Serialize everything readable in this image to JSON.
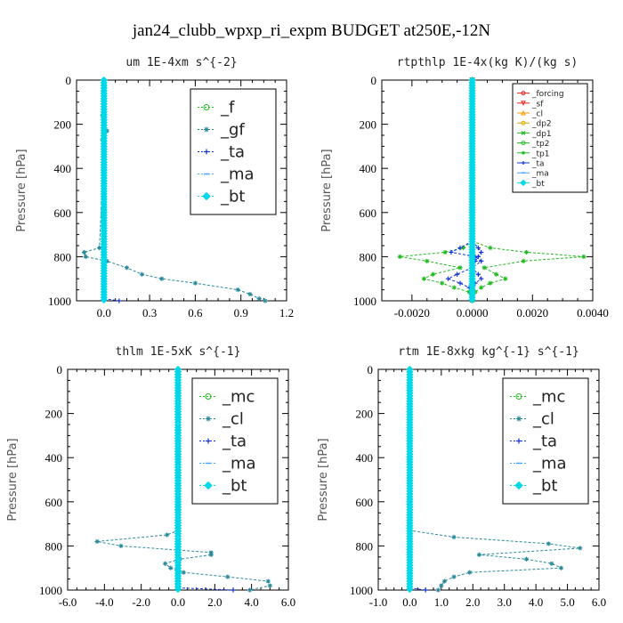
{
  "title": "jan24_clubb_wpxp_ri_expm  BUDGET at250E,-12N",
  "colors": {
    "green": "#22bb22",
    "teal": "#2a8a9a",
    "blue": "#1133dd",
    "lightblue": "#4aa3ff",
    "cyan": "#00d8e8",
    "red": "#ee2222",
    "orange": "#ff9900",
    "gold": "#ddaa00"
  },
  "chart_data": [
    {
      "type": "line",
      "title": "um  1E-4xm s^{-2}",
      "ylabel": "Pressure [hPa]",
      "xlim": [
        -0.18,
        1.2
      ],
      "ylim": [
        1000,
        0
      ],
      "xticks": [
        "0.0",
        "0.3",
        "0.6",
        "0.9",
        "1.2"
      ],
      "xtick_values": [
        0,
        0.3,
        0.6,
        0.9,
        1.2
      ],
      "yticks": [
        "0",
        "200",
        "400",
        "600",
        "800",
        "1000"
      ],
      "ytick_values": [
        0,
        200,
        400,
        600,
        800,
        1000
      ],
      "legend_position": "top-right",
      "legend_size": "large",
      "series": [
        {
          "name": "_f",
          "color": "#22bb22",
          "marker": "circle",
          "y": [
            0,
            1000
          ],
          "x": [
            0,
            0
          ]
        },
        {
          "name": "_gf",
          "color": "#2a8a9a",
          "marker": "star",
          "y": [
            0,
            120,
            160,
            200,
            230,
            270,
            300,
            760,
            780,
            800,
            820,
            850,
            880,
            900,
            920,
            950,
            970,
            990,
            1000
          ],
          "x": [
            0,
            0.0,
            -0.01,
            0.0,
            0.02,
            -0.01,
            0.0,
            -0.03,
            -0.13,
            -0.12,
            0.02,
            0.15,
            0.25,
            0.38,
            0.6,
            0.88,
            0.96,
            1.02,
            1.06
          ]
        },
        {
          "name": "_ta",
          "color": "#1133dd",
          "marker": "plus",
          "y": [
            990,
            1000
          ],
          "x": [
            0,
            0.1
          ]
        },
        {
          "name": "_ma",
          "color": "#4aa3ff",
          "marker": "dash",
          "y": [
            0,
            1000
          ],
          "x": [
            0,
            0
          ]
        },
        {
          "name": "_bt",
          "color": "#00d8e8",
          "marker": "diamond",
          "y": [
            0,
            1000
          ],
          "x": [
            0,
            0
          ]
        }
      ]
    },
    {
      "type": "line",
      "title": "rtpthlp  1E-4x(kg K)/(kg s)",
      "ylabel": "Pressure [hPa]",
      "xlim": [
        -0.003,
        0.004
      ],
      "ylim": [
        1000,
        0
      ],
      "xticks": [
        "-0.0020",
        "0.0000",
        "0.0020",
        "0.0040"
      ],
      "xtick_values": [
        -0.002,
        0,
        0.002,
        0.004
      ],
      "yticks": [
        "0",
        "200",
        "400",
        "600",
        "800",
        "1000"
      ],
      "ytick_values": [
        0,
        200,
        400,
        600,
        800,
        1000
      ],
      "legend_position": "top-right",
      "legend_size": "small",
      "series": [
        {
          "name": "_forcing",
          "color": "#ee2222",
          "marker": "circle",
          "y": [
            0,
            1000
          ],
          "x": [
            0,
            0
          ]
        },
        {
          "name": "_sf",
          "color": "#ee2222",
          "marker": "triangle-down",
          "y": [
            0,
            1000
          ],
          "x": [
            0,
            0
          ]
        },
        {
          "name": "_cl",
          "color": "#ff9900",
          "marker": "triangle",
          "y": [
            0,
            1000
          ],
          "x": [
            0,
            0
          ]
        },
        {
          "name": "_dp2",
          "color": "#ddaa00",
          "marker": "circle",
          "y": [
            0,
            1000
          ],
          "x": [
            0,
            0
          ]
        },
        {
          "name": "_dp1",
          "color": "#22bb22",
          "marker": "cross",
          "y": [
            0,
            1000
          ],
          "x": [
            0,
            0
          ]
        },
        {
          "name": "_tp2",
          "color": "#22bb22",
          "marker": "circle",
          "y": [
            0,
            1000
          ],
          "x": [
            0,
            0
          ]
        },
        {
          "name": "_tp1",
          "color": "#22bb22",
          "marker": "star",
          "y": [
            730,
            760,
            780,
            800,
            820,
            850,
            880,
            900,
            920,
            940,
            960,
            980
          ],
          "x": [
            0.0,
            0.0006,
            0.0018,
            0.0037,
            0.0017,
            0.0004,
            0.0008,
            0.0011,
            0.0006,
            0.0003,
            0.0001,
            0.0
          ],
          "x2": [
            0.0,
            -0.0003,
            -0.0009,
            -0.0024,
            -0.0015,
            -0.0004,
            -0.0013,
            -0.0016,
            -0.001,
            -0.0006,
            -0.0001,
            0.0
          ]
        },
        {
          "name": "_ta",
          "color": "#1133dd",
          "marker": "plus",
          "y": [
            730,
            760,
            780,
            800,
            820,
            850,
            880,
            900,
            920,
            940,
            960
          ],
          "x": [
            0.0,
            -0.0004,
            -0.0007,
            0.0001,
            0.0003,
            0.0,
            -0.0005,
            -0.0008,
            -0.0004,
            -0.0001,
            0.0
          ],
          "x2": [
            0.0,
            0.0002,
            0.0003,
            0.0002,
            0.0001,
            0.0,
            0.0002,
            0.0003,
            0.0001,
            0.0,
            0.0
          ]
        },
        {
          "name": "_ma",
          "color": "#4aa3ff",
          "marker": "dash",
          "y": [
            0,
            1000
          ],
          "x": [
            0,
            0
          ]
        },
        {
          "name": "_bt",
          "color": "#00d8e8",
          "marker": "diamond",
          "y": [
            0,
            1000
          ],
          "x": [
            0,
            0
          ]
        }
      ]
    },
    {
      "type": "line",
      "title": "thlm  1E-5xK s^{-1}",
      "ylabel": "Pressure [hPa]",
      "xlim": [
        -6.0,
        6.0
      ],
      "ylim": [
        1000,
        0
      ],
      "xticks": [
        "-6.0",
        "-4.0",
        "-2.0",
        "0.0",
        "2.0",
        "4.0",
        "6.0"
      ],
      "xtick_values": [
        -6,
        -4,
        -2,
        0,
        2,
        4,
        6
      ],
      "yticks": [
        "0",
        "200",
        "400",
        "600",
        "800",
        "1000"
      ],
      "ytick_values": [
        0,
        200,
        400,
        600,
        800,
        1000
      ],
      "legend_position": "top-right",
      "legend_size": "large",
      "series": [
        {
          "name": "_mc",
          "color": "#22bb22",
          "marker": "circle",
          "y": [
            0,
            1000
          ],
          "x": [
            0,
            0
          ]
        },
        {
          "name": "_cl",
          "color": "#2a8a9a",
          "marker": "star",
          "y": [
            0,
            730,
            750,
            780,
            800,
            830,
            840,
            860,
            880,
            900,
            920,
            940,
            960,
            980,
            1000
          ],
          "x": [
            0,
            0.0,
            -0.6,
            -4.4,
            -3.1,
            1.8,
            1.8,
            0.1,
            -0.7,
            -0.4,
            0.3,
            2.7,
            4.9,
            5.0,
            3.9
          ]
        },
        {
          "name": "_ta",
          "color": "#1133dd",
          "marker": "plus",
          "y": [
            990,
            1000
          ],
          "x": [
            0.0,
            3.0
          ]
        },
        {
          "name": "_ma",
          "color": "#4aa3ff",
          "marker": "dash",
          "y": [
            0,
            1000
          ],
          "x": [
            0,
            0
          ]
        },
        {
          "name": "_bt",
          "color": "#00d8e8",
          "marker": "diamond",
          "y": [
            0,
            1000
          ],
          "x": [
            0,
            0
          ]
        }
      ]
    },
    {
      "type": "line",
      "title": "rtm  1E-8xkg kg^{-1} s^{-1}",
      "ylabel": "Pressure [hPa]",
      "xlim": [
        -1.0,
        6.0
      ],
      "ylim": [
        1000,
        0
      ],
      "xticks": [
        "-1.0",
        "0.0",
        "1.0",
        "2.0",
        "3.0",
        "4.0",
        "5.0",
        "6.0"
      ],
      "xtick_values": [
        -1,
        0,
        1,
        2,
        3,
        4,
        5,
        6
      ],
      "yticks": [
        "0",
        "200",
        "400",
        "600",
        "800",
        "1000"
      ],
      "ytick_values": [
        0,
        200,
        400,
        600,
        800,
        1000
      ],
      "legend_position": "top-right",
      "legend_size": "large",
      "series": [
        {
          "name": "_mc",
          "color": "#22bb22",
          "marker": "circle",
          "y": [
            0,
            1000
          ],
          "x": [
            0,
            0
          ]
        },
        {
          "name": "_cl",
          "color": "#2a8a9a",
          "marker": "star",
          "y": [
            0,
            730,
            760,
            790,
            810,
            840,
            860,
            880,
            900,
            920,
            940,
            960,
            980,
            1000
          ],
          "x": [
            0,
            0.0,
            1.4,
            4.4,
            5.4,
            2.2,
            3.7,
            4.5,
            4.8,
            1.9,
            1.4,
            1.1,
            1.0,
            0.9
          ]
        },
        {
          "name": "_ta",
          "color": "#1133dd",
          "marker": "plus",
          "y": [
            990,
            1000
          ],
          "x": [
            0.0,
            0.5
          ]
        },
        {
          "name": "_ma",
          "color": "#4aa3ff",
          "marker": "dash",
          "y": [
            0,
            1000
          ],
          "x": [
            0,
            0
          ]
        },
        {
          "name": "_bt",
          "color": "#00d8e8",
          "marker": "diamond",
          "y": [
            0,
            1000
          ],
          "x": [
            0,
            0
          ]
        }
      ]
    }
  ]
}
